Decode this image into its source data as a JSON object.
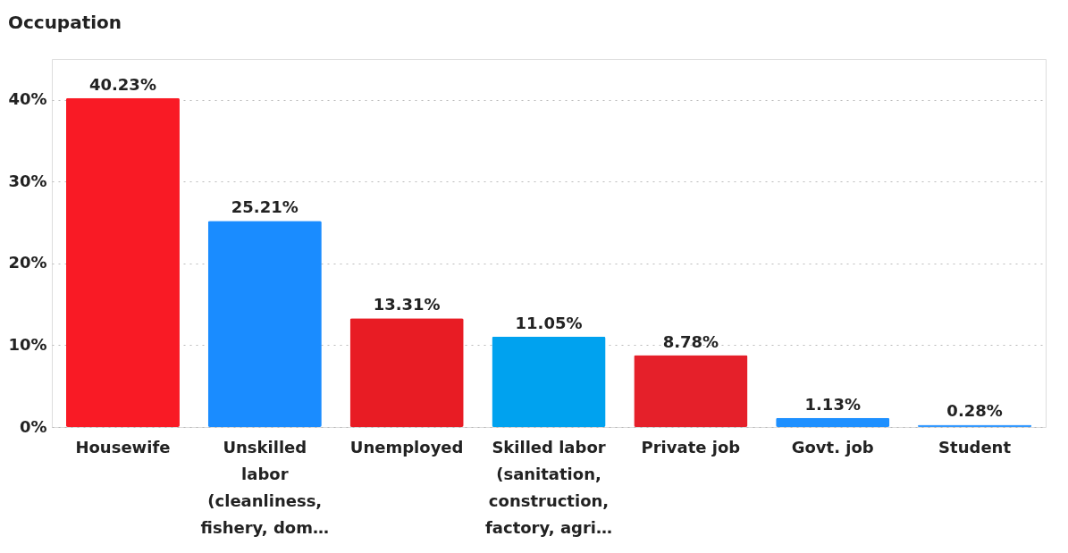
{
  "chart_data": {
    "type": "bar",
    "title": "Occupation",
    "categories": [
      "Housewife",
      "Unskilled labor (cleanliness, fishery, dom…",
      "Unemployed",
      "Skilled labor (sanitation, construction, factory, agri…",
      "Private job",
      "Govt. job",
      "Student"
    ],
    "values": [
      40.23,
      25.21,
      13.31,
      11.05,
      8.78,
      1.13,
      0.28
    ],
    "colors": [
      "#f91a25",
      "#1a8cff",
      "#e81c24",
      "#00a2ef",
      "#e5202a",
      "#1e90ff",
      "#3399ff"
    ],
    "value_labels": [
      "40.23%",
      "25.21%",
      "13.31%",
      "11.05%",
      "8.78%",
      "1.13%",
      "0.28%"
    ],
    "ylim": [
      0,
      45
    ],
    "yticks": [
      {
        "value": 0,
        "label": "0%"
      },
      {
        "value": 10,
        "label": "10%"
      },
      {
        "value": 20,
        "label": "20%"
      },
      {
        "value": 30,
        "label": "30%"
      },
      {
        "value": 40,
        "label": "40%"
      }
    ],
    "grid": "y"
  }
}
